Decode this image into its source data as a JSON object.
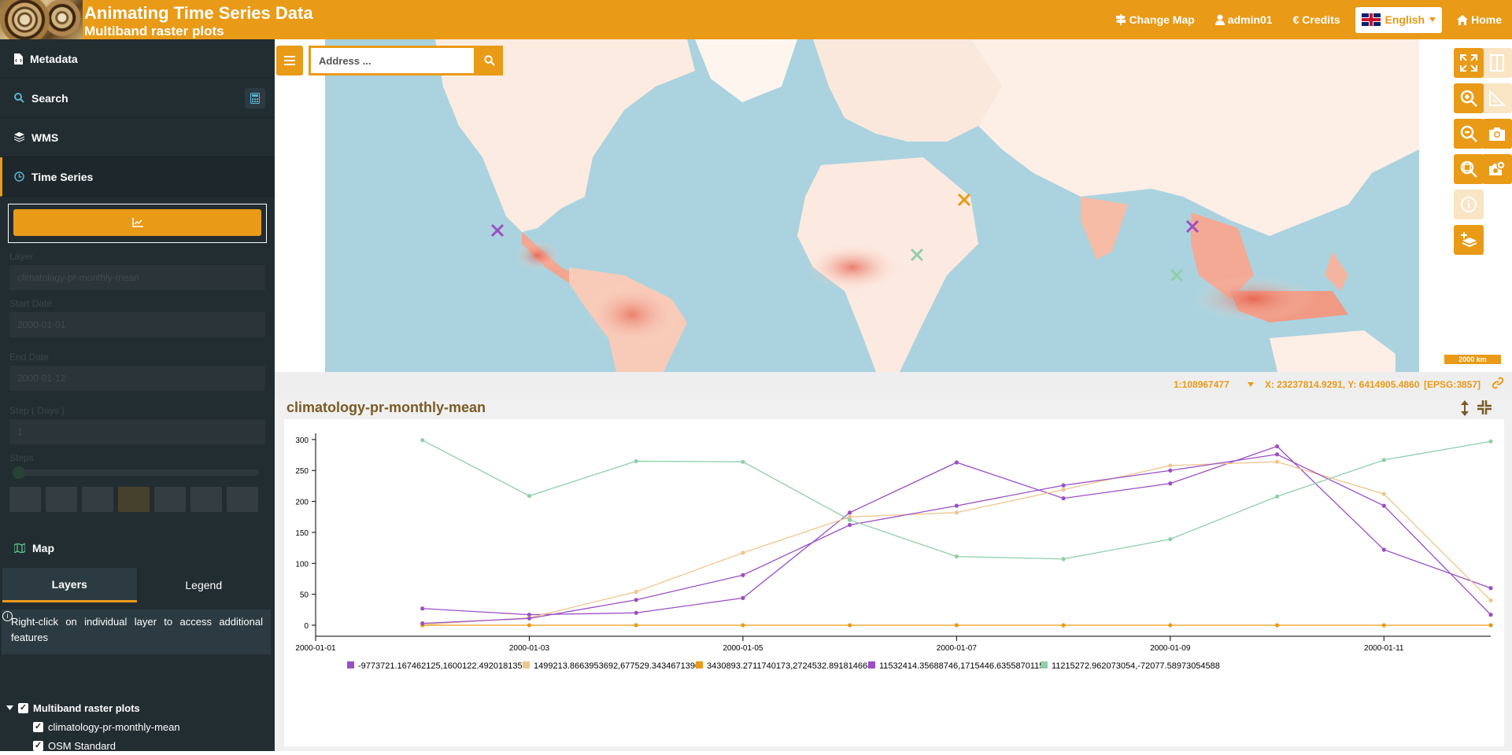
{
  "header": {
    "title": "Animating Time Series Data",
    "subtitle": "Multiband raster plots",
    "nav": {
      "change_map": "Change Map",
      "user": "admin01",
      "credits": "€ Credits",
      "language": "English",
      "home": "Home"
    }
  },
  "sidebar": {
    "items": {
      "metadata": "Metadata",
      "search": "Search",
      "wms": "WMS",
      "time_series": "Time Series"
    },
    "form": {
      "layer_label": "Layer",
      "layer_value": "climatology-pr-monthly-mean",
      "start_label": "Start Date",
      "start_value": "2000-01-01",
      "end_label": "End Date",
      "end_value": "2000-01-12",
      "step_label": "Step ( Days )",
      "step_value": "1",
      "steps_label": "Steps"
    },
    "map": {
      "heading": "Map",
      "tabs": {
        "layers": "Layers",
        "legend": "Legend"
      },
      "info": "Right-click on individual layer to access additional features",
      "tree": {
        "group": "Multiband raster plots",
        "layers": [
          "climatology-pr-monthly-mean",
          "OSM Standard"
        ]
      }
    }
  },
  "map": {
    "address_placeholder": "Address ...",
    "scale_bar": "2000 km",
    "scale": "1:108967477",
    "coords": "X: 23237814.9291, Y: 6414905.4860",
    "epsg": "[EPSG:3857]"
  },
  "chart_panel": {
    "title": "climatology-pr-monthly-mean"
  },
  "chart_data": {
    "type": "line",
    "x": [
      "2000-01-02",
      "2000-01-03",
      "2000-01-04",
      "2000-01-05",
      "2000-01-06",
      "2000-01-07",
      "2000-01-08",
      "2000-01-09",
      "2000-01-10",
      "2000-01-11",
      "2000-01-12"
    ],
    "x_ticks": [
      "2000-01-01",
      "2000-01-03",
      "2000-01-05",
      "2000-01-07",
      "2000-01-09",
      "2000-01-11"
    ],
    "y_ticks": [
      0,
      50,
      100,
      150,
      200,
      250,
      300
    ],
    "ylim": [
      0,
      310
    ],
    "series": [
      {
        "name": "-9773721.167462125,1600122.4920181353",
        "color": "#9b4fc4",
        "values": [
          27,
          17,
          20,
          44,
          182,
          263,
          205,
          229,
          289,
          122,
          60
        ]
      },
      {
        "name": "1499213.8663953692,677529.3434671396",
        "color": "#f0c58e",
        "values": [
          1,
          12,
          54,
          117,
          175,
          182,
          219,
          258,
          264,
          212,
          40
        ]
      },
      {
        "name": "3430893.2711740173,2724532.891814664",
        "color": "#e99a17",
        "values": [
          0,
          0,
          0,
          0,
          0,
          0,
          0,
          0,
          0,
          0,
          0
        ]
      },
      {
        "name": "11532414.35688746,1715446.6355870115",
        "color": "#9b4fc4",
        "values": [
          3,
          11,
          41,
          81,
          162,
          193,
          226,
          250,
          276,
          193,
          17
        ]
      },
      {
        "name": "11215272.962073054,-72077.58973054588",
        "color": "#8fcfa8",
        "values": [
          299,
          209,
          265,
          264,
          170,
          111,
          107,
          139,
          208,
          267,
          297
        ]
      }
    ]
  }
}
